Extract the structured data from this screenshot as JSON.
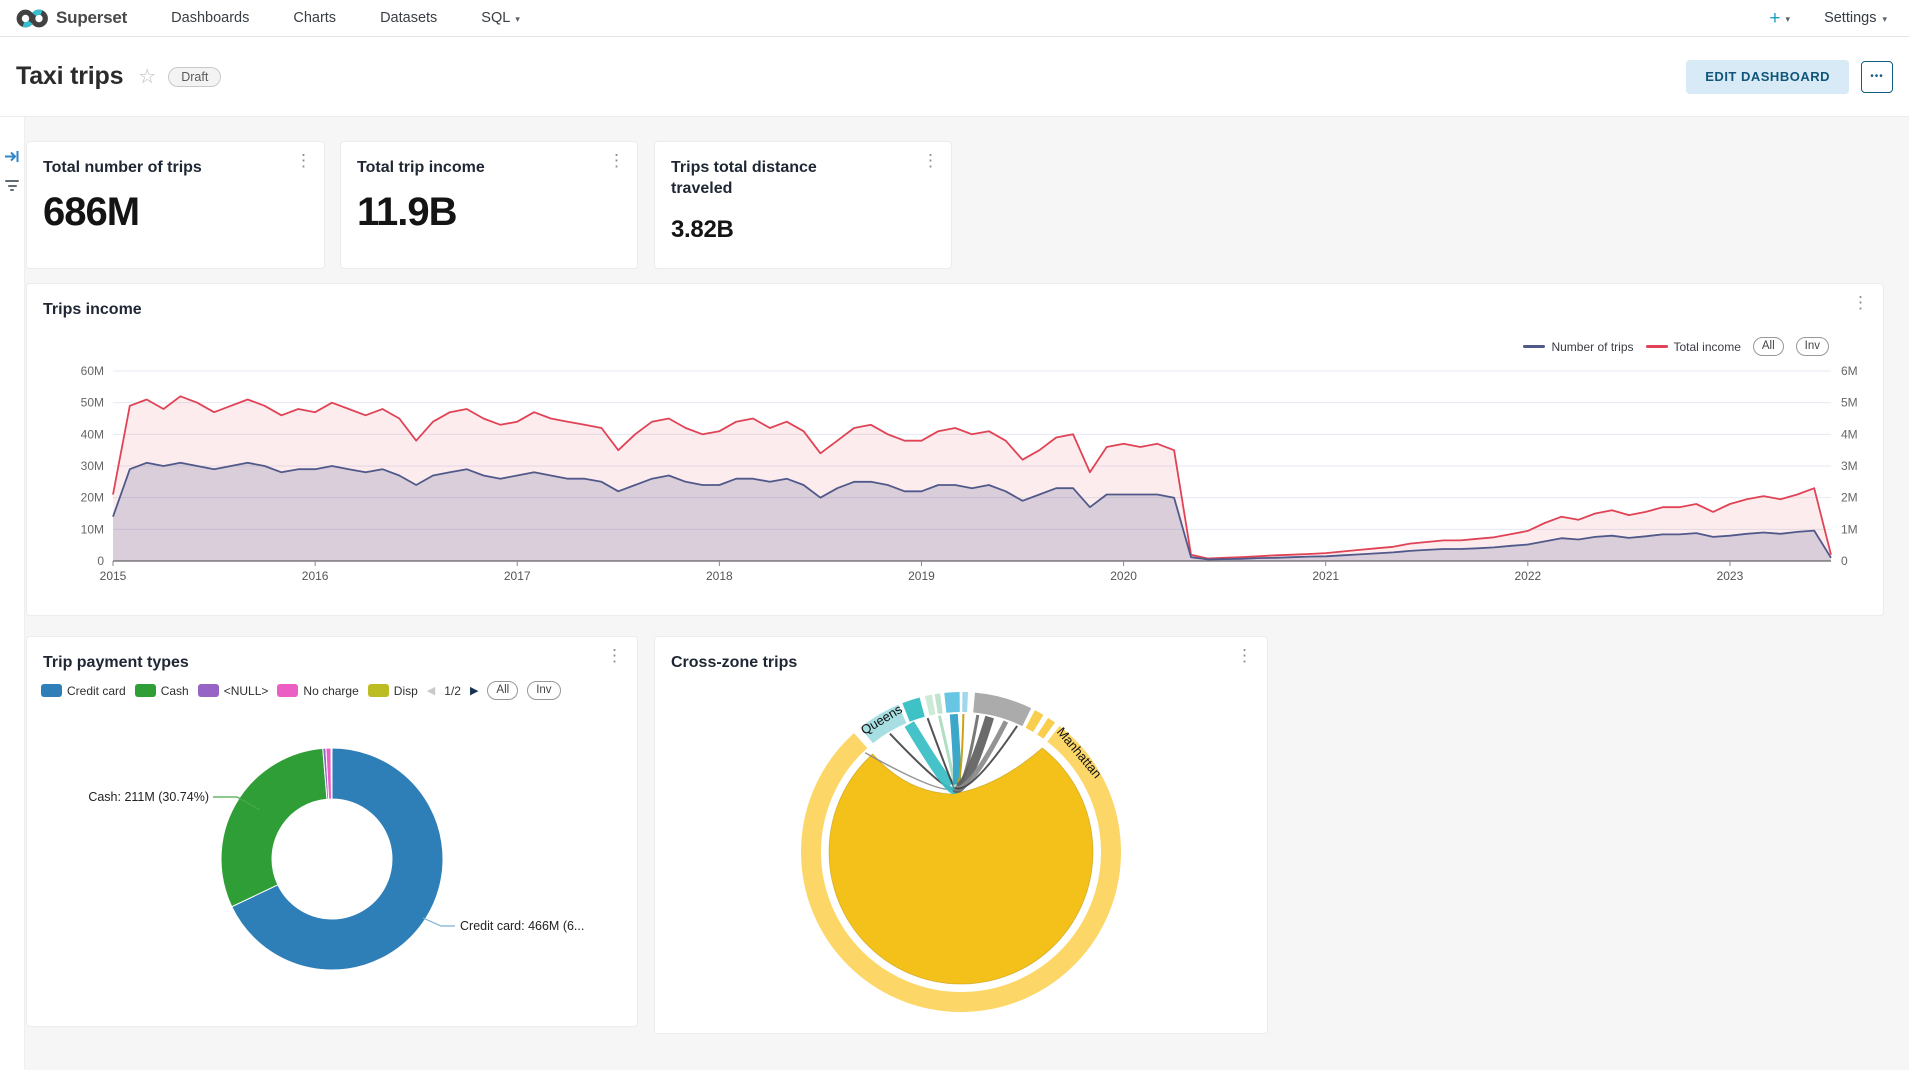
{
  "icons": {
    "kebab": "⋮",
    "star": "☆",
    "caret": "▾",
    "prev": "◀",
    "next": "▶"
  },
  "navbar": {
    "brand": "Superset",
    "items": [
      {
        "label": "Dashboards",
        "has_caret": false
      },
      {
        "label": "Charts",
        "has_caret": false
      },
      {
        "label": "Datasets",
        "has_caret": false
      },
      {
        "label": "SQL",
        "has_caret": true
      }
    ],
    "right": {
      "plus": "+",
      "settings": "Settings"
    }
  },
  "header": {
    "title": "Taxi trips",
    "badge": "Draft",
    "edit_button": "EDIT DASHBOARD",
    "more_button": "•••"
  },
  "kpis": [
    {
      "title": "Total number of trips",
      "value": "686M"
    },
    {
      "title": "Total trip income",
      "value": "11.9B"
    },
    {
      "title": "Trips total distance traveled",
      "value": "3.82B"
    }
  ],
  "panels": {
    "line": {
      "title": "Trips income",
      "buttons": [
        "All",
        "Inv"
      ]
    },
    "donut": {
      "title": "Trip payment types",
      "pagination": "1/2",
      "buttons": [
        "All",
        "Inv"
      ]
    },
    "chord": {
      "title": "Cross-zone trips"
    }
  },
  "chart_data": [
    {
      "id": "trips-income",
      "type": "area-line",
      "title": "Trips income",
      "x_ticks": [
        "2015",
        "2016",
        "2017",
        "2018",
        "2019",
        "2020",
        "2021",
        "2022",
        "2023"
      ],
      "left_axis_ticks": [
        "60M",
        "50M",
        "40M",
        "30M",
        "20M",
        "10M",
        "0"
      ],
      "right_axis_ticks": [
        "6M",
        "5M",
        "4M",
        "3M",
        "2M",
        "1M",
        "0"
      ],
      "ylim_left": [
        0,
        60
      ],
      "grid": true,
      "legend_position": "top-right",
      "series": [
        {
          "name": "Total income",
          "color": "#E04355",
          "fill_opacity": 0.1,
          "values": [
            21,
            49,
            51,
            48,
            52,
            50,
            47,
            49,
            51,
            49,
            46,
            48,
            47,
            50,
            48,
            46,
            48,
            45,
            38,
            44,
            47,
            48,
            45,
            43,
            44,
            47,
            45,
            44,
            43,
            42,
            35,
            40,
            44,
            45,
            42,
            40,
            41,
            44,
            45,
            42,
            44,
            41,
            34,
            38,
            42,
            43,
            40,
            38,
            38,
            41,
            42,
            40,
            41,
            38,
            32,
            35,
            39,
            40,
            28,
            36,
            37,
            36,
            37,
            35,
            2,
            0.8,
            1,
            1.2,
            1.5,
            1.8,
            2,
            2.2,
            2.5,
            3,
            3.5,
            4,
            4.5,
            5.5,
            6,
            6.5,
            6.5,
            7,
            7.5,
            8.5,
            9.5,
            12,
            14,
            13,
            15,
            16,
            14.5,
            15.5,
            17,
            17,
            18,
            15.5,
            18,
            19.5,
            20.5,
            19.5,
            21,
            23,
            2
          ]
        },
        {
          "name": "Number of trips",
          "color": "#51598A",
          "fill_opacity": 0.2,
          "values": [
            14,
            29,
            31,
            30,
            31,
            30,
            29,
            30,
            31,
            30,
            28,
            29,
            29,
            30,
            29,
            28,
            29,
            27,
            24,
            27,
            28,
            29,
            27,
            26,
            27,
            28,
            27,
            26,
            26,
            25,
            22,
            24,
            26,
            27,
            25,
            24,
            24,
            26,
            26,
            25,
            26,
            24,
            20,
            23,
            25,
            25,
            24,
            22,
            22,
            24,
            24,
            23,
            24,
            22,
            19,
            21,
            23,
            23,
            17,
            21,
            21,
            21,
            21,
            20,
            1.2,
            0.5,
            0.6,
            0.7,
            0.9,
            1,
            1.2,
            1.4,
            1.5,
            1.8,
            2.1,
            2.4,
            2.7,
            3.2,
            3.5,
            3.8,
            3.8,
            4,
            4.3,
            4.8,
            5.2,
            6.2,
            7.2,
            6.8,
            7.6,
            8,
            7.3,
            7.8,
            8.4,
            8.4,
            8.8,
            7.6,
            8,
            8.6,
            9,
            8.6,
            9.2,
            9.6,
            1
          ]
        }
      ],
      "legend": [
        {
          "label": "Number of trips",
          "color": "#51598A"
        },
        {
          "label": "Total income",
          "color": "#E04355"
        }
      ]
    },
    {
      "id": "trip-payment-types",
      "type": "donut",
      "title": "Trip payment types",
      "slices": [
        {
          "label": "Credit card",
          "value_label": "466M",
          "pct": 67.93,
          "color": "#2E7EB8"
        },
        {
          "label": "Cash",
          "value_label": "211M",
          "pct": 30.74,
          "color": "#2F9E37"
        },
        {
          "label": "<NULL>",
          "pct": 0.45,
          "color": "#9564C4"
        },
        {
          "label": "No charge",
          "pct": 0.75,
          "color": "#ED5EC4"
        },
        {
          "label": "Disp",
          "pct": 0.13,
          "color": "#BCBD22"
        }
      ],
      "callouts": [
        {
          "id": "cash",
          "text": "Cash: 211M (30.74%)",
          "line_color": "#4ca64c"
        },
        {
          "id": "credit",
          "text": "Credit card: 466M (6...",
          "line_color": "#7ab1d4"
        }
      ]
    },
    {
      "id": "cross-zone-trips",
      "type": "chord",
      "title": "Cross-zone trips",
      "ring_color": "#FCD768",
      "main_chord_color": "#F4C11B",
      "arcs": [
        {
          "name": "other-zone",
          "color": "#FCD768",
          "start": 38,
          "end": 318
        },
        {
          "name": "queens",
          "color": "#A7DEE2",
          "start": 321,
          "end": 337
        },
        {
          "name": "teal-zone",
          "color": "#3EC2C6",
          "start": 338.5,
          "end": 345
        },
        {
          "name": "mint-zone-1",
          "color": "#CDEAD6",
          "start": 347,
          "end": 349.5
        },
        {
          "name": "mint-zone-2",
          "color": "#BFE4CE",
          "start": 350.5,
          "end": 352.5
        },
        {
          "name": "blue-zone",
          "color": "#66C6E3",
          "start": 354,
          "end": 359.5
        },
        {
          "name": "blue-zone-2",
          "color": "#9FD8EC",
          "start": 0.5,
          "end": 2.5
        },
        {
          "name": "gray-zone",
          "color": "#ABABAB",
          "start": 5,
          "end": 26
        },
        {
          "name": "yellow-sliver-1",
          "color": "#F8CE4C",
          "start": 27.5,
          "end": 31
        },
        {
          "name": "yellow-sliver-2",
          "color": "#F8CE4C",
          "start": 33,
          "end": 36
        }
      ],
      "chords": [
        {
          "from": -44,
          "w": 1.5,
          "color": "#8a8a8a"
        },
        {
          "from": -31,
          "w": 2,
          "color": "#444444"
        },
        {
          "from": -22,
          "w": 11,
          "color": "#35BEC3"
        },
        {
          "from": -14,
          "w": 2,
          "color": "#444444"
        },
        {
          "from": -9,
          "w": 3,
          "color": "#A8DCBD"
        },
        {
          "from": -3,
          "w": 8,
          "color": "#2D9FC6"
        },
        {
          "from": 1,
          "w": 2,
          "color": "#C79B00"
        },
        {
          "from": 7,
          "w": 3,
          "color": "#6E6E6E"
        },
        {
          "from": 12,
          "w": 9,
          "color": "#5E5E5E"
        },
        {
          "from": 19,
          "w": 5,
          "color": "#8A8A8A"
        },
        {
          "from": 24,
          "w": 2,
          "color": "#444444"
        }
      ],
      "labels": [
        {
          "text": "Queens",
          "angle": -31
        },
        {
          "text": "Manhattan",
          "angle": 50
        }
      ]
    }
  ]
}
